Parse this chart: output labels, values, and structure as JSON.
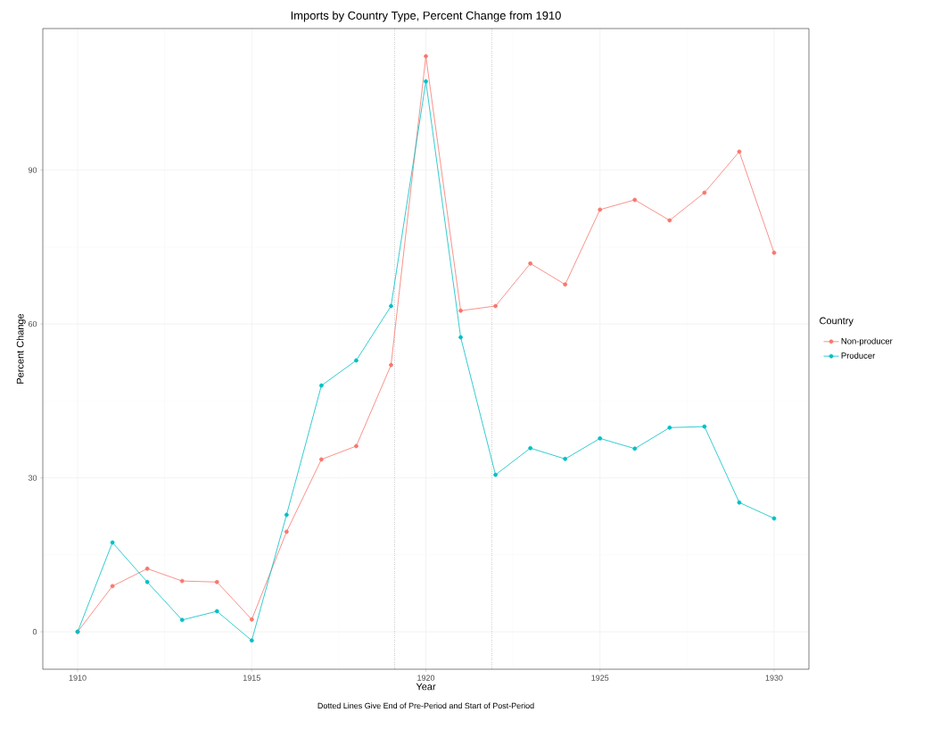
{
  "chart_data": {
    "type": "line",
    "title": "Imports by Country Type, Percent Change from 1910",
    "xlabel": "Year",
    "ylabel": "Percent Change",
    "legend_title": "Country",
    "annotations": [
      "Dotted Lines Give End of Pre-Period and Start of Post-Period"
    ],
    "x": [
      1910,
      1911,
      1912,
      1913,
      1914,
      1915,
      1916,
      1917,
      1918,
      1919,
      1920,
      1921,
      1922,
      1923,
      1924,
      1925,
      1926,
      1927,
      1928,
      1929,
      1930
    ],
    "series": [
      {
        "name": "Non-producer",
        "color": "#f8766d",
        "values": [
          0,
          8.9,
          12.3,
          9.9,
          9.7,
          2.4,
          19.5,
          33.6,
          36.2,
          52.0,
          112.2,
          62.6,
          63.5,
          71.8,
          67.7,
          82.3,
          84.2,
          80.2,
          85.6,
          93.6,
          73.9
        ]
      },
      {
        "name": "Producer",
        "color": "#00bfc4",
        "values": [
          0,
          17.4,
          9.7,
          2.3,
          4.0,
          -1.7,
          22.8,
          48.0,
          52.9,
          63.5,
          107.3,
          57.4,
          30.6,
          35.8,
          33.7,
          37.7,
          35.7,
          39.8,
          40.0,
          25.2,
          22.1
        ]
      }
    ],
    "xlim": [
      1909,
      1931
    ],
    "ylim": [
      -7.3,
      117.6
    ],
    "xticks": [
      1910,
      1915,
      1920,
      1925,
      1930
    ],
    "yticks": [
      0,
      30,
      60,
      90
    ],
    "ref_lines": [
      {
        "axis": "x",
        "value": 1919.1,
        "color": "#000000",
        "line_style": "dotted"
      },
      {
        "axis": "x",
        "value": 1921.9,
        "color": "#000000",
        "line_style": "dotted"
      }
    ],
    "grid": true,
    "legend": "right",
    "marker": "circle"
  }
}
